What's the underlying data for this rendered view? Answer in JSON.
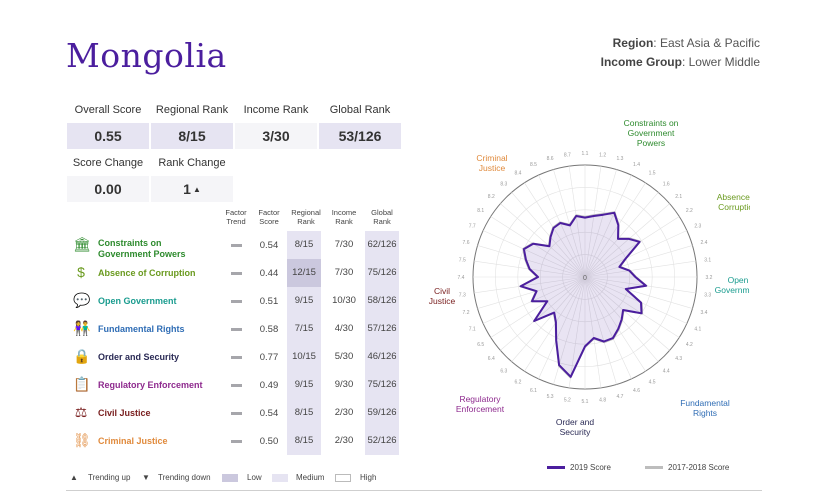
{
  "country": "Mongolia",
  "region": {
    "label": "Region",
    "value": "East Asia & Pacific"
  },
  "income_group": {
    "label": "Income Group",
    "value": "Lower Middle"
  },
  "stats": {
    "overall_score": {
      "label": "Overall Score",
      "value": "0.55"
    },
    "regional_rank": {
      "label": "Regional Rank",
      "value": "8/15"
    },
    "income_rank": {
      "label": "Income Rank",
      "value": "3/30"
    },
    "global_rank": {
      "label": "Global Rank",
      "value": "53/126"
    },
    "score_change": {
      "label": "Score Change",
      "value": "0.00"
    },
    "rank_change": {
      "label": "Rank Change",
      "value": "1",
      "arrow": "▲"
    }
  },
  "columns": {
    "factor_trend": [
      "Factor",
      "Trend"
    ],
    "factor_score": [
      "Factor",
      "Score"
    ],
    "regional_rank": [
      "Regional",
      "Rank"
    ],
    "income_rank": [
      "Income",
      "Rank"
    ],
    "global_rank": [
      "Global",
      "Rank"
    ]
  },
  "factors": [
    {
      "name": [
        "Constraints on",
        "Government Powers"
      ],
      "color": "#2e8b2e",
      "icon": "government-building-icon",
      "glyph": "🏛",
      "score": "0.54",
      "regional": "8/15",
      "income": "7/30",
      "global": "62/126",
      "reg_level": "med"
    },
    {
      "name": [
        "Absence of Corruption"
      ],
      "color": "#6a9a1f",
      "icon": "money-bag-icon",
      "glyph": "$",
      "score": "0.44",
      "regional": "12/15",
      "income": "7/30",
      "global": "75/126",
      "reg_level": "low"
    },
    {
      "name": [
        "Open Government"
      ],
      "color": "#1a9c8f",
      "icon": "speech-bubbles-icon",
      "glyph": "💬",
      "score": "0.51",
      "regional": "9/15",
      "income": "10/30",
      "global": "58/126",
      "reg_level": "med"
    },
    {
      "name": [
        "Fundamental Rights"
      ],
      "color": "#2f6db5",
      "icon": "people-icon",
      "glyph": "👫",
      "score": "0.58",
      "regional": "7/15",
      "income": "4/30",
      "global": "57/126",
      "reg_level": "med"
    },
    {
      "name": [
        "Order and Security"
      ],
      "color": "#2a2a55",
      "icon": "padlock-icon",
      "glyph": "🔒",
      "score": "0.77",
      "regional": "10/15",
      "income": "5/30",
      "global": "46/126",
      "reg_level": "med"
    },
    {
      "name": [
        "Regulatory Enforcement"
      ],
      "color": "#8e2a8e",
      "icon": "clipboard-icon",
      "glyph": "📋",
      "score": "0.49",
      "regional": "9/15",
      "income": "9/30",
      "global": "75/126",
      "reg_level": "med"
    },
    {
      "name": [
        "Civil Justice"
      ],
      "color": "#7a2020",
      "icon": "scales-icon",
      "glyph": "⚖",
      "score": "0.54",
      "regional": "8/15",
      "income": "2/30",
      "global": "59/126",
      "reg_level": "med"
    },
    {
      "name": [
        "Criminal Justice"
      ],
      "color": "#e08a3c",
      "icon": "handcuffs-icon",
      "glyph": "⛓",
      "score": "0.50",
      "regional": "8/15",
      "income": "2/30",
      "global": "52/126",
      "reg_level": "med"
    }
  ],
  "legend": {
    "trending_up": {
      "glyph": "▲",
      "label": "Trending up"
    },
    "trending_down": {
      "glyph": "▼",
      "label": "Trending down"
    },
    "low": "Low",
    "medium": "Medium",
    "high": "High",
    "low_color": "#cbc8de",
    "medium_color": "#e6e4f2"
  },
  "radar": {
    "center_label": "0",
    "axes": [
      {
        "label": [
          "Constraints on",
          "Government",
          "Powers"
        ],
        "color": "#2e8b2e"
      },
      {
        "label": [
          "Absence of",
          "Corruption"
        ],
        "color": "#6a9a1f"
      },
      {
        "label": [
          "Open",
          "Government"
        ],
        "color": "#1a9c8f"
      },
      {
        "label": [
          "Fundamental",
          "Rights"
        ],
        "color": "#2f6db5"
      },
      {
        "label": [
          "Order and",
          "Security"
        ],
        "color": "#2a2a55"
      },
      {
        "label": [
          "Regulatory",
          "Enforcement"
        ],
        "color": "#8e2a8e"
      },
      {
        "label": [
          "Civil",
          "Justice"
        ],
        "color": "#7a2020"
      },
      {
        "label": [
          "Criminal",
          "Justice"
        ],
        "color": "#e08a3c"
      }
    ],
    "subfactor_labels": [
      "1.1",
      "1.2",
      "1.3",
      "1.4",
      "1.5",
      "1.6",
      "2.1",
      "2.2",
      "2.3",
      "2.4",
      "3.1",
      "3.2",
      "3.3",
      "3.4",
      "4.1",
      "4.2",
      "4.3",
      "4.4",
      "4.5",
      "4.6",
      "4.7",
      "4.8",
      "5.1",
      "5.2",
      "5.3",
      "6.1",
      "6.2",
      "6.3",
      "6.4",
      "6.5",
      "7.1",
      "7.2",
      "7.3",
      "7.4",
      "7.5",
      "7.6",
      "7.7",
      "8.1",
      "8.2",
      "8.3",
      "8.4",
      "8.5",
      "8.6",
      "8.7"
    ],
    "score_2019": [
      0.53,
      0.55,
      0.58,
      0.63,
      0.55,
      0.45,
      0.52,
      0.58,
      0.4,
      0.32,
      0.4,
      0.45,
      0.55,
      0.38,
      0.55,
      0.6,
      0.45,
      0.5,
      0.55,
      0.6,
      0.6,
      0.55,
      0.62,
      0.9,
      0.82,
      0.62,
      0.48,
      0.42,
      0.6,
      0.4,
      0.52,
      0.45,
      0.58,
      0.42,
      0.5,
      0.55,
      0.6,
      0.55,
      0.42,
      0.47,
      0.52,
      0.53,
      0.48,
      0.55
    ],
    "score_2017_2018": [
      0.54,
      0.56,
      0.59,
      0.64,
      0.56,
      0.46,
      0.53,
      0.59,
      0.41,
      0.33,
      0.41,
      0.46,
      0.56,
      0.39,
      0.56,
      0.61,
      0.46,
      0.51,
      0.56,
      0.61,
      0.61,
      0.56,
      0.63,
      0.91,
      0.83,
      0.63,
      0.49,
      0.43,
      0.61,
      0.41,
      0.53,
      0.46,
      0.59,
      0.43,
      0.51,
      0.56,
      0.61,
      0.56,
      0.43,
      0.48,
      0.53,
      0.54,
      0.49,
      0.56
    ],
    "series_2019": {
      "label": "2019 Score",
      "color": "#4b1e9e"
    },
    "series_prev": {
      "label": "2017-2018 Score",
      "color": "#bdbdbd"
    }
  }
}
